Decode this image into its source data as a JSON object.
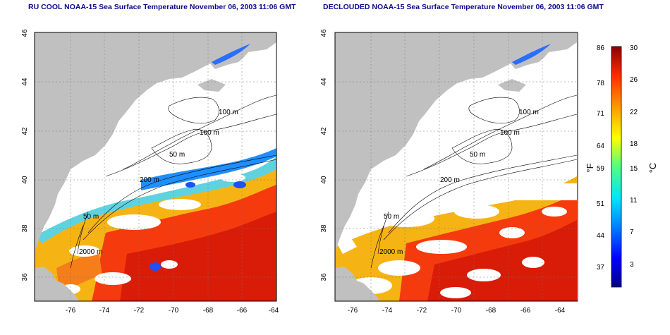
{
  "titles": {
    "left": "RU COOL NOAA-15 Sea Surface Temperature November 06, 2003 11:06 GMT",
    "right": "DECLOUDED NOAA-15 Sea Surface Temperature November 06, 2003 11:06 GMT"
  },
  "map": {
    "lon_ticks": [
      "-76",
      "-74",
      "-72",
      "-70",
      "-68",
      "-66",
      "-64"
    ],
    "lat_ticks": [
      "46",
      "44",
      "42",
      "40",
      "38",
      "36"
    ],
    "contour_labels": [
      "100 m",
      "100 m",
      "50 m",
      "200 m",
      "50 m",
      "2000 m"
    ]
  },
  "colorbar": {
    "fahrenheit_ticks": [
      "86",
      "78",
      "71",
      "64",
      "59",
      "51",
      "44",
      "37"
    ],
    "celsius_ticks": [
      "30",
      "26",
      "22",
      "18",
      "15",
      "11",
      "7",
      "3"
    ],
    "unit_left": "°F",
    "unit_right": "°C",
    "colors": [
      "#00008b",
      "#0000ff",
      "#0080ff",
      "#00e5ff",
      "#50ff80",
      "#ffff00",
      "#ff9900",
      "#ff2a00",
      "#8b0000"
    ]
  },
  "colors": {
    "land": "#c0c0c0",
    "cloud_no_data": "#ffffff",
    "title": "#0a0a8c"
  }
}
